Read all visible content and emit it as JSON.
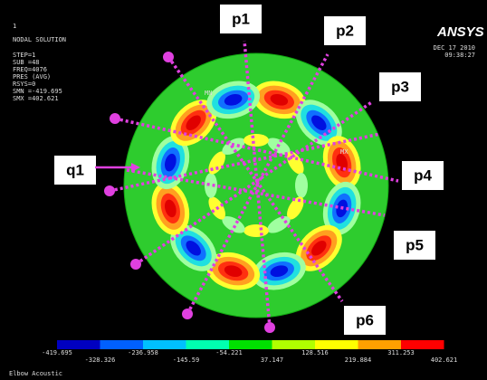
{
  "header": {
    "index": "1",
    "title": "NODAL SOLUTION",
    "lines": [
      "STEP=1",
      "SUB =48",
      "FREQ=4076",
      "PRES      (AVG)",
      "RSYS=0",
      "SMN =-419.695",
      "SMX =402.621"
    ]
  },
  "logo": "ANSYS",
  "date": "DEC 17 2010",
  "time": "09:38:27",
  "markers": {
    "mn": "MN",
    "mx": "MX"
  },
  "labels": [
    "p1",
    "p2",
    "p3",
    "p4",
    "p5",
    "p6",
    "q1"
  ],
  "legend": [
    "-419.695",
    "-328.326",
    "-236.958",
    "-145.59",
    "-54.221",
    "37.147",
    "128.516",
    "219.884",
    "311.253",
    "402.621"
  ],
  "footer": "Elbow Acoustic"
}
